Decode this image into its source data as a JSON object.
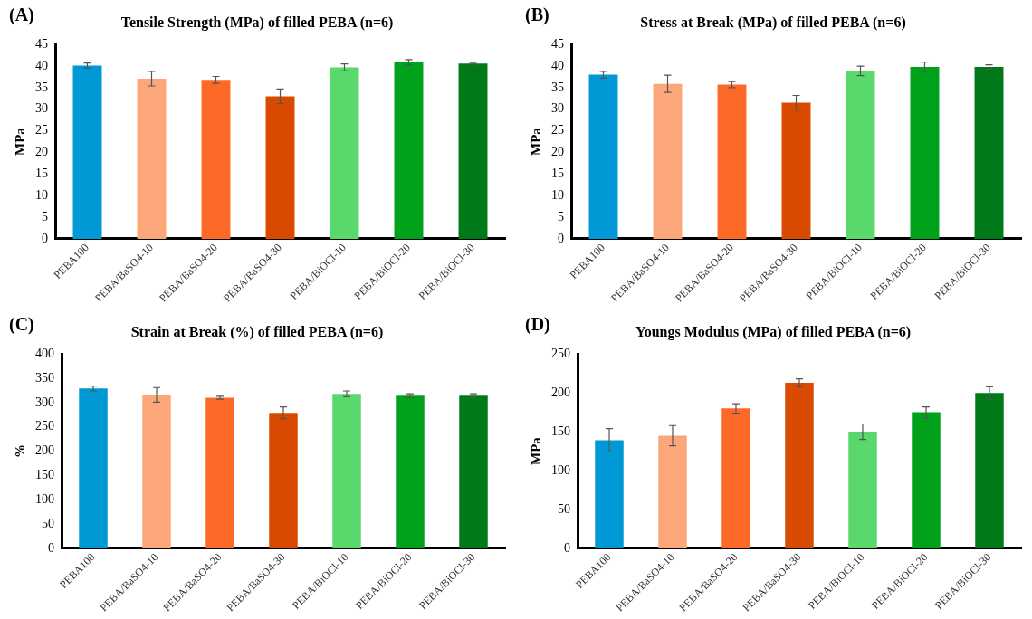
{
  "chart_data": [
    {
      "type": "bar",
      "title": "Tensile Strength (MPa) of filled PEBA (n=6)",
      "ylabel": "MPa",
      "annotations": [
        "(A)"
      ],
      "categories": [
        "PEBA100",
        "PEBA/BaSO4-10",
        "PEBA/BaSO4-20",
        "PEBA/BaSO4-30",
        "PEBA/BiOCl-10",
        "PEBA/BiOCl-20",
        "PEBA/BiOCl-30"
      ],
      "values": [
        40.1,
        37.1,
        36.8,
        33.0,
        39.7,
        40.9,
        40.6
      ],
      "errors": [
        0.6,
        1.7,
        0.8,
        1.7,
        0.8,
        0.6,
        0.2
      ],
      "colors": [
        "#0099d6",
        "#fca77a",
        "#fd6a28",
        "#d94a01",
        "#59d96c",
        "#00a21c",
        "#007a18"
      ],
      "ylim": [
        0,
        45
      ],
      "yticks": [
        0,
        5,
        10,
        15,
        20,
        25,
        30,
        35,
        40,
        45
      ]
    },
    {
      "type": "bar",
      "title": "Stress at Break (MPa) of filled PEBA (n=6)",
      "ylabel": "MPa",
      "annotations": [
        "(B)"
      ],
      "categories": [
        "PEBA100",
        "PEBA/BaSO4-10",
        "PEBA/BaSO4-20",
        "PEBA/BaSO4-30",
        "PEBA/BiOCl-10",
        "PEBA/BiOCl-20",
        "PEBA/BiOCl-30"
      ],
      "values": [
        38.0,
        35.9,
        35.7,
        31.5,
        38.9,
        39.8,
        39.8
      ],
      "errors": [
        0.8,
        2.0,
        0.7,
        1.7,
        1.1,
        1.1,
        0.5
      ],
      "colors": [
        "#0099d6",
        "#fca77a",
        "#fd6a28",
        "#d94a01",
        "#59d96c",
        "#00a21c",
        "#007a18"
      ],
      "ylim": [
        0,
        45
      ],
      "yticks": [
        0,
        5,
        10,
        15,
        20,
        25,
        30,
        35,
        40,
        45
      ]
    },
    {
      "type": "bar",
      "title": "Strain at Break (%) of filled PEBA (n=6)",
      "ylabel": "%",
      "annotations": [
        "(C)"
      ],
      "categories": [
        "PEBA100",
        "PEBA/BaSO4-10",
        "PEBA/BaSO4-20",
        "PEBA/BaSO4-30",
        "PEBA/BiOCl-10",
        "PEBA/BiOCl-20",
        "PEBA/BiOCl-30"
      ],
      "values": [
        329,
        316,
        310,
        279,
        318,
        314,
        314
      ],
      "errors": [
        5,
        15,
        3,
        12,
        6,
        4,
        4
      ],
      "colors": [
        "#0099d6",
        "#fca77a",
        "#fd6a28",
        "#d94a01",
        "#59d96c",
        "#00a21c",
        "#007a18"
      ],
      "ylim": [
        0,
        400
      ],
      "yticks": [
        0,
        50,
        100,
        150,
        200,
        250,
        300,
        350,
        400
      ]
    },
    {
      "type": "bar",
      "title": "Youngs Modulus (MPa) of filled PEBA (n=6)",
      "ylabel": "MPa",
      "annotations": [
        "(D)"
      ],
      "categories": [
        "PEBA100",
        "PEBA/BaSO4-10",
        "PEBA/BaSO4-20",
        "PEBA/BaSO4-30",
        "PEBA/BiOCl-10",
        "PEBA/BiOCl-20",
        "PEBA/BiOCl-30"
      ],
      "values": [
        139,
        145,
        180,
        213,
        150,
        175,
        200
      ],
      "errors": [
        15,
        13,
        6,
        5,
        10,
        7,
        8
      ],
      "colors": [
        "#0099d6",
        "#fca77a",
        "#fd6a28",
        "#d94a01",
        "#59d96c",
        "#00a21c",
        "#007a18"
      ],
      "ylim": [
        0,
        250
      ],
      "yticks": [
        0,
        50,
        100,
        150,
        200,
        250
      ]
    }
  ]
}
